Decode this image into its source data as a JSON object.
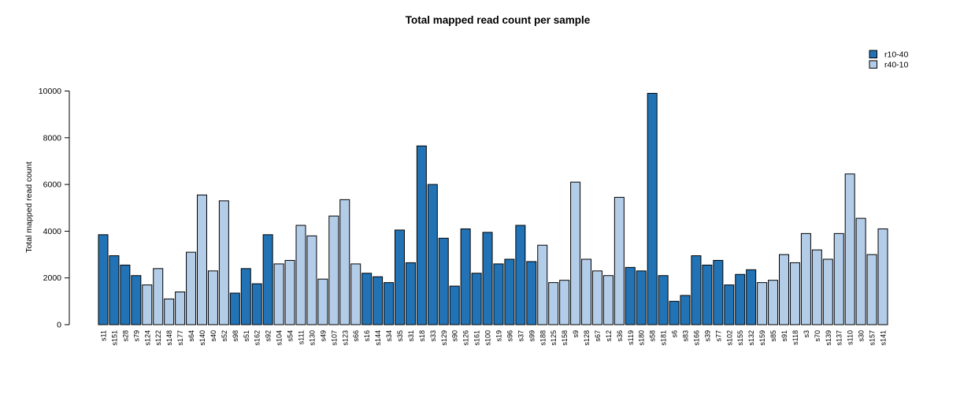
{
  "chart_data": {
    "type": "bar",
    "title": "Total mapped read count per sample",
    "ylabel": "Total mapped read count",
    "xlabel": "",
    "ylim": [
      0,
      10000
    ],
    "yticks": [
      0,
      2000,
      4000,
      6000,
      8000,
      10000
    ],
    "grid": false,
    "legend_position": "top-right",
    "bar_border_color": "#000000",
    "legend": [
      {
        "name": "r10-40",
        "color": "#2273B5"
      },
      {
        "name": "r40-10",
        "color": "#B3CDE8"
      }
    ],
    "samples": [
      {
        "id": "s11",
        "group": "r10-40",
        "value": 3850
      },
      {
        "id": "s151",
        "group": "r10-40",
        "value": 2950
      },
      {
        "id": "s28",
        "group": "r10-40",
        "value": 2550
      },
      {
        "id": "s79",
        "group": "r10-40",
        "value": 2100
      },
      {
        "id": "s124",
        "group": "r40-10",
        "value": 1700
      },
      {
        "id": "s122",
        "group": "r40-10",
        "value": 2400
      },
      {
        "id": "s148",
        "group": "r40-10",
        "value": 1100
      },
      {
        "id": "s177",
        "group": "r40-10",
        "value": 1400
      },
      {
        "id": "s64",
        "group": "r40-10",
        "value": 3100
      },
      {
        "id": "s140",
        "group": "r40-10",
        "value": 5550
      },
      {
        "id": "s40",
        "group": "r40-10",
        "value": 2300
      },
      {
        "id": "s52",
        "group": "r40-10",
        "value": 5300
      },
      {
        "id": "s98",
        "group": "r10-40",
        "value": 1350
      },
      {
        "id": "s51",
        "group": "r10-40",
        "value": 2400
      },
      {
        "id": "s162",
        "group": "r10-40",
        "value": 1750
      },
      {
        "id": "s92",
        "group": "r10-40",
        "value": 3850
      },
      {
        "id": "s104",
        "group": "r40-10",
        "value": 2600
      },
      {
        "id": "s54",
        "group": "r40-10",
        "value": 2750
      },
      {
        "id": "s111",
        "group": "r40-10",
        "value": 4250
      },
      {
        "id": "s130",
        "group": "r40-10",
        "value": 3800
      },
      {
        "id": "s49",
        "group": "r40-10",
        "value": 1950
      },
      {
        "id": "s107",
        "group": "r40-10",
        "value": 4650
      },
      {
        "id": "s123",
        "group": "r40-10",
        "value": 5350
      },
      {
        "id": "s66",
        "group": "r40-10",
        "value": 2600
      },
      {
        "id": "s16",
        "group": "r10-40",
        "value": 2200
      },
      {
        "id": "s144",
        "group": "r10-40",
        "value": 2050
      },
      {
        "id": "s34",
        "group": "r10-40",
        "value": 1800
      },
      {
        "id": "s35",
        "group": "r10-40",
        "value": 4050
      },
      {
        "id": "s31",
        "group": "r10-40",
        "value": 2650
      },
      {
        "id": "s18",
        "group": "r10-40",
        "value": 7650
      },
      {
        "id": "s33",
        "group": "r10-40",
        "value": 6000
      },
      {
        "id": "s129",
        "group": "r10-40",
        "value": 3700
      },
      {
        "id": "s90",
        "group": "r10-40",
        "value": 1650
      },
      {
        "id": "s126",
        "group": "r10-40",
        "value": 4100
      },
      {
        "id": "s161",
        "group": "r10-40",
        "value": 2200
      },
      {
        "id": "s100",
        "group": "r10-40",
        "value": 3950
      },
      {
        "id": "s19",
        "group": "r10-40",
        "value": 2600
      },
      {
        "id": "s96",
        "group": "r10-40",
        "value": 2800
      },
      {
        "id": "s37",
        "group": "r10-40",
        "value": 4250
      },
      {
        "id": "s99",
        "group": "r10-40",
        "value": 2700
      },
      {
        "id": "s188",
        "group": "r40-10",
        "value": 3400
      },
      {
        "id": "s125",
        "group": "r40-10",
        "value": 1800
      },
      {
        "id": "s158",
        "group": "r40-10",
        "value": 1900
      },
      {
        "id": "s9",
        "group": "r40-10",
        "value": 6100
      },
      {
        "id": "s128",
        "group": "r40-10",
        "value": 2800
      },
      {
        "id": "s67",
        "group": "r40-10",
        "value": 2300
      },
      {
        "id": "s12",
        "group": "r40-10",
        "value": 2100
      },
      {
        "id": "s36",
        "group": "r40-10",
        "value": 5450
      },
      {
        "id": "s119",
        "group": "r10-40",
        "value": 2450
      },
      {
        "id": "s180",
        "group": "r10-40",
        "value": 2300
      },
      {
        "id": "s58",
        "group": "r10-40",
        "value": 9900
      },
      {
        "id": "s181",
        "group": "r10-40",
        "value": 2100
      },
      {
        "id": "s6",
        "group": "r10-40",
        "value": 1000
      },
      {
        "id": "s83",
        "group": "r10-40",
        "value": 1250
      },
      {
        "id": "s166",
        "group": "r10-40",
        "value": 2950
      },
      {
        "id": "s39",
        "group": "r10-40",
        "value": 2550
      },
      {
        "id": "s77",
        "group": "r10-40",
        "value": 2750
      },
      {
        "id": "s102",
        "group": "r10-40",
        "value": 1700
      },
      {
        "id": "s155",
        "group": "r10-40",
        "value": 2150
      },
      {
        "id": "s132",
        "group": "r10-40",
        "value": 2350
      },
      {
        "id": "s159",
        "group": "r40-10",
        "value": 1800
      },
      {
        "id": "s85",
        "group": "r40-10",
        "value": 1900
      },
      {
        "id": "s91",
        "group": "r40-10",
        "value": 3000
      },
      {
        "id": "s118",
        "group": "r40-10",
        "value": 2650
      },
      {
        "id": "s3",
        "group": "r40-10",
        "value": 3900
      },
      {
        "id": "s70",
        "group": "r40-10",
        "value": 3200
      },
      {
        "id": "s139",
        "group": "r40-10",
        "value": 2800
      },
      {
        "id": "s137",
        "group": "r40-10",
        "value": 3900
      },
      {
        "id": "s110",
        "group": "r40-10",
        "value": 6450
      },
      {
        "id": "s30",
        "group": "r40-10",
        "value": 4550
      },
      {
        "id": "s157",
        "group": "r40-10",
        "value": 3000
      },
      {
        "id": "s141",
        "group": "r40-10",
        "value": 4100
      }
    ]
  }
}
